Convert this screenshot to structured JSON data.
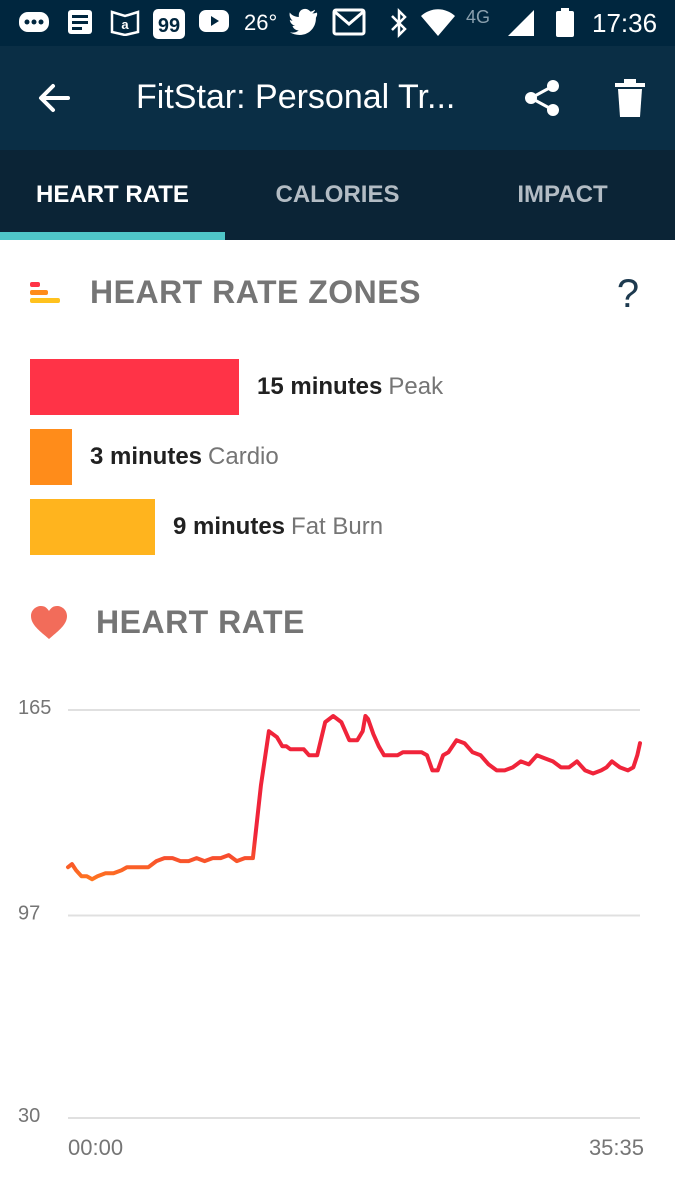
{
  "status_bar": {
    "temperature": "26°",
    "network": "4G",
    "time": "17:36",
    "icons": [
      "messages-icon",
      "news-icon",
      "kindle-icon",
      "app-99-icon",
      "youtube-icon",
      "twitter-icon",
      "gmail-icon",
      "bluetooth-icon",
      "wifi-icon",
      "signal-icon",
      "battery-icon"
    ]
  },
  "app_bar": {
    "title": "FitStar: Personal Tr...",
    "back_icon": "arrow-back-icon",
    "share_icon": "share-icon",
    "delete_icon": "trash-icon"
  },
  "tabs": [
    {
      "label": "HEART RATE",
      "active": true
    },
    {
      "label": "CALORIES",
      "active": false
    },
    {
      "label": "IMPACT",
      "active": false
    }
  ],
  "zones_section": {
    "title": "HEART RATE ZONES",
    "help_label": "?",
    "zones": [
      {
        "minutes_text": "15 minutes",
        "name": "Peak",
        "minutes": 15,
        "color": "#ff3347"
      },
      {
        "minutes_text": "3 minutes",
        "name": "Cardio",
        "minutes": 3,
        "color": "#ff8c1a"
      },
      {
        "minutes_text": "9 minutes",
        "name": "Fat Burn",
        "minutes": 9,
        "color": "#ffb41e"
      }
    ]
  },
  "heart_rate_section": {
    "title": "HEART RATE"
  },
  "chart_data": {
    "type": "line",
    "title": "",
    "xlabel": "",
    "ylabel": "",
    "yticks": [
      165,
      97,
      30
    ],
    "ylim": [
      30,
      165
    ],
    "xlim": [
      0,
      2135
    ],
    "xtick_labels": [
      "00:00",
      "35:35"
    ],
    "grid": true,
    "colors": {
      "low": "#ff7a1f",
      "high": "#f0243a"
    },
    "series": [
      {
        "x": [
          0,
          15,
          30,
          50,
          70,
          90,
          110,
          140,
          170,
          200,
          220,
          240,
          270,
          300,
          330,
          360,
          390,
          420,
          450,
          480,
          510,
          540,
          570,
          600,
          630,
          660,
          690,
          720,
          750,
          780,
          800,
          815,
          830,
          850,
          880,
          900,
          930,
          960,
          990,
          1020,
          1050,
          1080,
          1100,
          1110,
          1120,
          1140,
          1160,
          1180,
          1200,
          1230,
          1250,
          1270,
          1280,
          1300,
          1320,
          1340,
          1360,
          1380,
          1400,
          1420,
          1450,
          1480,
          1510,
          1540,
          1570,
          1600,
          1630,
          1660,
          1690,
          1720,
          1750,
          1780,
          1810,
          1840,
          1870,
          1900,
          1930,
          1960,
          1990,
          2010,
          2030,
          2060,
          2090,
          2110,
          2125,
          2135
        ],
        "y": [
          113,
          114,
          112,
          110,
          110,
          109,
          110,
          111,
          111,
          112,
          113,
          113,
          113,
          113,
          115,
          116,
          116,
          115,
          115,
          116,
          115,
          116,
          116,
          117,
          115,
          116,
          116,
          140,
          158,
          156,
          153,
          153,
          152,
          152,
          152,
          150,
          150,
          161,
          163,
          161,
          155,
          155,
          158,
          163,
          162,
          157,
          153,
          150,
          150,
          150,
          151,
          151,
          151,
          151,
          151,
          150,
          145,
          145,
          150,
          151,
          155,
          154,
          151,
          150,
          147,
          145,
          145,
          146,
          148,
          147,
          150,
          149,
          148,
          146,
          146,
          148,
          145,
          144,
          145,
          146,
          148,
          146,
          145,
          146,
          150,
          154
        ]
      }
    ]
  }
}
